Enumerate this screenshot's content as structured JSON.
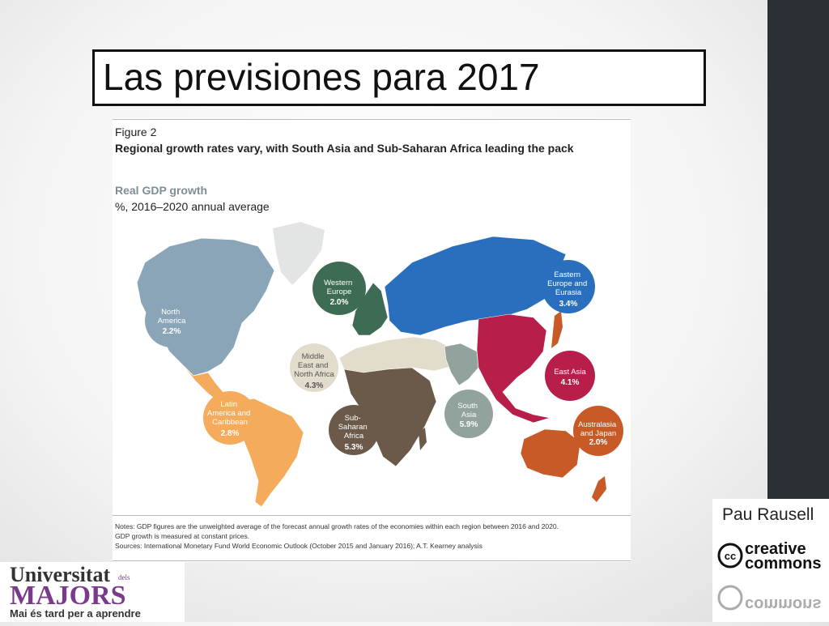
{
  "slide": {
    "title": "Las previsiones para 2017",
    "author": "Pau Rausell"
  },
  "figure": {
    "label": "Figure 2",
    "heading": "Regional growth rates vary, with South Asia and Sub-Saharan Africa leading the pack",
    "metric": "Real GDP growth",
    "metric_sub": "%, 2016–2020 annual average",
    "notes": [
      "Notes: GDP figures are the unweighted average of the forecast annual growth rates of the economies within each region between 2016 and 2020.",
      "GDP growth is measured at constant prices.",
      "Sources: International Monetary Fund World Economic Outlook (October 2015 and January 2016); A.T. Kearney analysis"
    ],
    "regions": [
      {
        "lines": [
          "North",
          "America"
        ],
        "value": "2.2%",
        "color": "#8aa5b8"
      },
      {
        "lines": [
          "Western",
          "Europe"
        ],
        "value": "2.0%",
        "color": "#3d6b53"
      },
      {
        "lines": [
          "Eastern",
          "Europe and",
          "Eurasia"
        ],
        "value": "3.4%",
        "color": "#2a6fbe"
      },
      {
        "lines": [
          "Middle",
          "East and",
          "North Africa"
        ],
        "value": "4.3%",
        "color": "#e2dccc"
      },
      {
        "lines": [
          "East Asia"
        ],
        "value": "4.1%",
        "color": "#b81e4a"
      },
      {
        "lines": [
          "Latin",
          "America and",
          "Caribbean"
        ],
        "value": "2.8%",
        "color": "#f4ac5c"
      },
      {
        "lines": [
          "Sub-",
          "Saharan",
          "Africa"
        ],
        "value": "5.3%",
        "color": "#6b5a49"
      },
      {
        "lines": [
          "South",
          "Asia"
        ],
        "value": "5.9%",
        "color": "#91a39c"
      },
      {
        "lines": [
          "Australasia",
          "and Japan"
        ],
        "value": "2.0%",
        "color": "#c85a27"
      }
    ]
  },
  "branding": {
    "cc_line1": "creative",
    "cc_line2": "commons",
    "cc_mark": "cc",
    "logo_line1": "Universitat",
    "logo_dels": "dels",
    "logo_line2": "MAJORS",
    "logo_tagline": "Mai és tard per a aprendre"
  }
}
